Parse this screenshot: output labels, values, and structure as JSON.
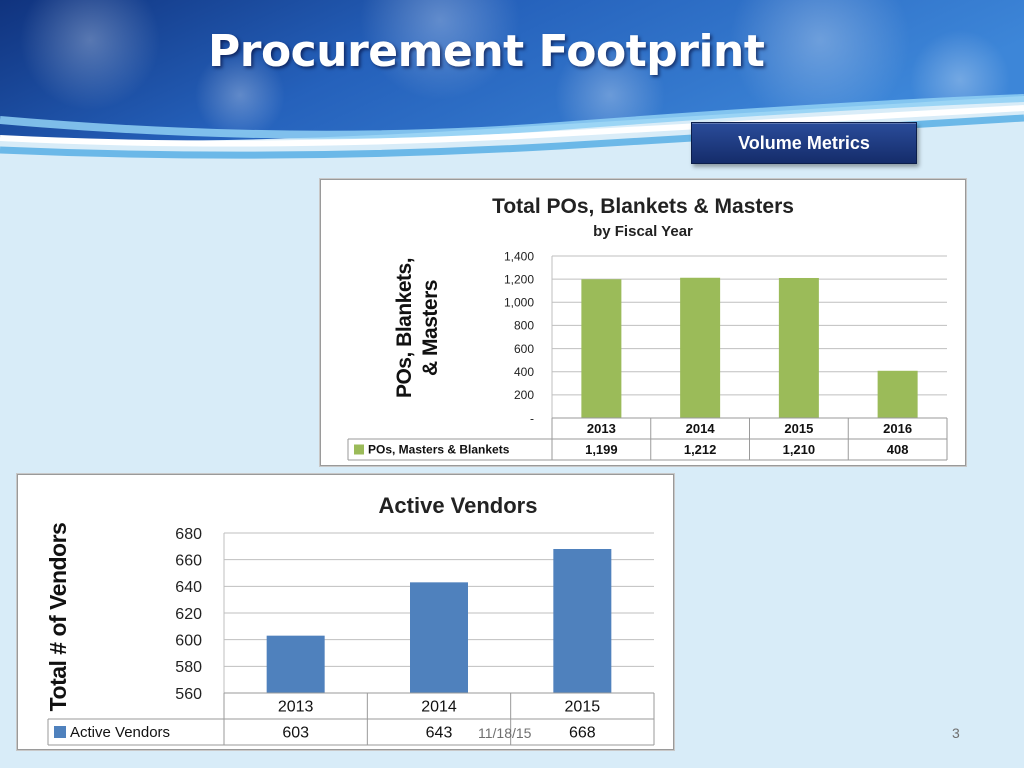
{
  "slide": {
    "title": "Procurement Footprint",
    "badge": "Volume Metrics",
    "footer_date": "11/18/15",
    "page_number": "3"
  },
  "colors": {
    "green_bar": "#9bbb59",
    "blue_bar": "#4f81bd",
    "banner_dark": "#123a8c",
    "banner_light": "#3b7fd4",
    "badge": "#1e3a82"
  },
  "chart_data": [
    {
      "type": "bar",
      "title": "Total POs, Blankets & Masters",
      "subtitle": "by Fiscal Year",
      "ylabel_lines": [
        "POs, Blankets,",
        "& Masters"
      ],
      "categories": [
        "2013",
        "2014",
        "2015",
        "2016"
      ],
      "series": [
        {
          "name": "POs, Masters & Blankets",
          "values": [
            1199,
            1212,
            1210,
            408
          ],
          "value_labels": [
            "1,199",
            "1,212",
            "1,210",
            "408"
          ]
        }
      ],
      "ylim": [
        0,
        1400
      ],
      "yticks": [
        0,
        200,
        400,
        600,
        800,
        1000,
        1200,
        1400
      ],
      "ytick_labels": [
        "-",
        "200",
        "400",
        "600",
        "800",
        "1,000",
        "1,200",
        "1,400"
      ],
      "grid": true,
      "legend": "data-table"
    },
    {
      "type": "bar",
      "title": "Active Vendors",
      "ylabel": "Total # of Vendors",
      "categories": [
        "2013",
        "2014",
        "2015"
      ],
      "series": [
        {
          "name": "Active Vendors",
          "values": [
            603,
            643,
            668
          ],
          "value_labels": [
            "603",
            "643",
            "668"
          ]
        }
      ],
      "ylim": [
        560,
        680
      ],
      "yticks": [
        560,
        580,
        600,
        620,
        640,
        660,
        680
      ],
      "ytick_labels": [
        "560",
        "580",
        "600",
        "620",
        "640",
        "660",
        "680"
      ],
      "grid": true,
      "legend": "data-table"
    }
  ]
}
